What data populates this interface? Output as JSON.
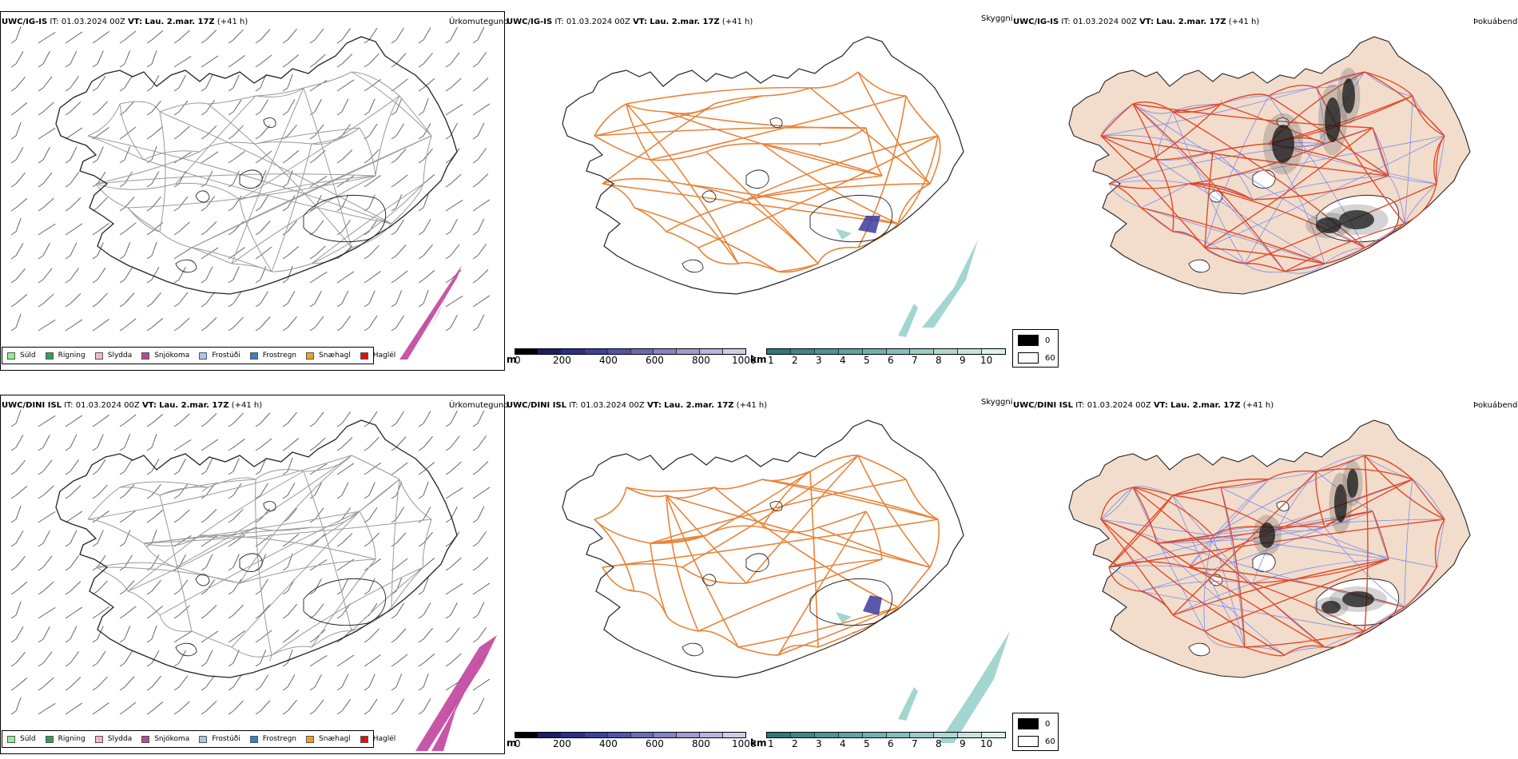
{
  "rows": [
    {
      "model": "UWC/IG-IS",
      "it_label": "IT:",
      "it_value": "01.03.2024 00Z",
      "vt_label": "VT:",
      "vt_value": "Lau. 2.mar. 17Z",
      "lead": "(+41 h)"
    },
    {
      "model": "UWC/DINI ISL",
      "it_label": "IT:",
      "it_value": "01.03.2024 00Z",
      "vt_label": "VT:",
      "vt_value": "Lau. 2.mar. 17Z",
      "lead": "(+41 h)"
    }
  ],
  "panel_titles": {
    "precip": "Úrkomutegund",
    "visibility": "Skyggni",
    "fog": "Þokuábendi"
  },
  "precip_legend": [
    {
      "label": "Súld",
      "color": "#90ee90"
    },
    {
      "label": "Rigning",
      "color": "#3a9a5c"
    },
    {
      "label": "Slydda",
      "color": "#f4b3d6"
    },
    {
      "label": "Snjókoma",
      "color": "#b04da0"
    },
    {
      "label": "Frostúði",
      "color": "#9ec9f0"
    },
    {
      "label": "Frostregn",
      "color": "#3a7fc4"
    },
    {
      "label": "Snæhagl",
      "color": "#f0a020"
    },
    {
      "label": "Haglél",
      "color": "#e01010"
    }
  ],
  "vis_bar_m": {
    "unit": "m",
    "ticks": [
      "0",
      "200",
      "400",
      "600",
      "800",
      "1000"
    ],
    "colors": [
      "#000000",
      "#1c1c6e",
      "#2d2d8c",
      "#3e3e9e",
      "#5252ad",
      "#6a6aba",
      "#8383c7",
      "#9c9cd3",
      "#b5b5df",
      "#cdcde9"
    ]
  },
  "vis_bar_km": {
    "unit": "km",
    "ticks": [
      "1",
      "2",
      "3",
      "4",
      "5",
      "6",
      "7",
      "8",
      "9",
      "10"
    ],
    "colors": [
      "#2a7b78",
      "#3a8985",
      "#4a9793",
      "#5ca5a1",
      "#70b2ae",
      "#85bfbc",
      "#9bcbc9",
      "#b1d7d5",
      "#c7e3e1",
      "#dcefee"
    ]
  },
  "fog_legend": [
    {
      "label": "0",
      "color": "#000000"
    },
    {
      "label": "60",
      "color": "#ffffff"
    }
  ],
  "colors": {
    "coast": "#222222",
    "roads_orange": "#e8843a",
    "land_fog": "#f2dccb",
    "roads_red": "#e04a2a",
    "rivers_blue": "#7b8cf0",
    "snow_magenta": "#c2449e",
    "teal_low_vis": "#8ccbc6"
  }
}
